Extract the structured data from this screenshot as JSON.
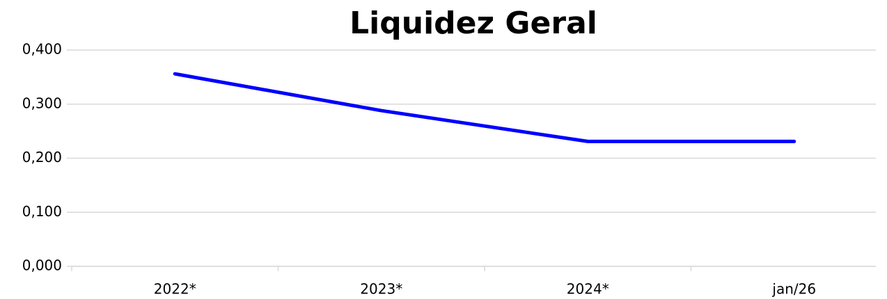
{
  "chart_data": {
    "type": "line",
    "title": "Liquidez Geral",
    "categories": [
      "2022*",
      "2023*",
      "2024*",
      "jan/26"
    ],
    "series": [
      {
        "name": "Liquidez Geral",
        "color": "#0000ff",
        "values": [
          0.356,
          0.288,
          0.231,
          0.231
        ]
      }
    ],
    "ylim": [
      0,
      0.4
    ],
    "yticks": [
      {
        "value": 0,
        "label": "0,000"
      },
      {
        "value": 0.1,
        "label": "0,100"
      },
      {
        "value": 0.2,
        "label": "0,200"
      },
      {
        "value": 0.3,
        "label": "0,300"
      },
      {
        "value": 0.4,
        "label": "0,400"
      }
    ],
    "grid": true
  }
}
